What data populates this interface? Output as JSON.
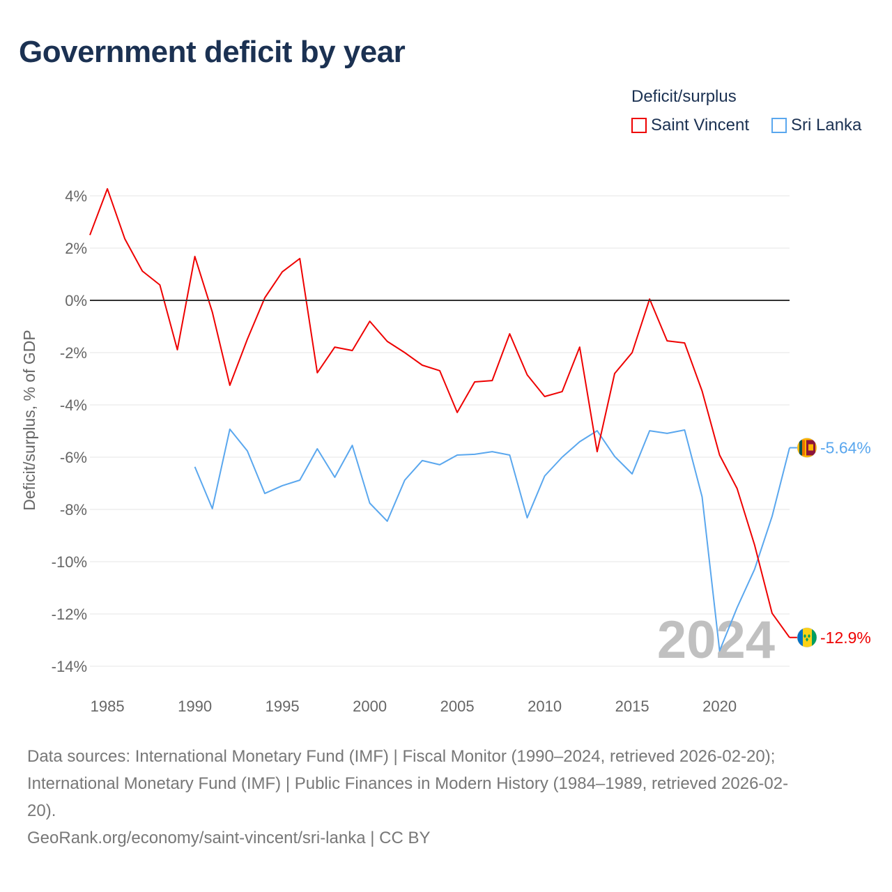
{
  "title": "Government deficit by year",
  "legend_title": "Deficit/surplus",
  "colors": {
    "saint_vincent": "#ee0000",
    "sri_lanka": "#5aa7ee",
    "grid": "#e6e6e6",
    "zero": "#333333",
    "axis_text": "#666666",
    "year_watermark": "#c0c0c0"
  },
  "year_watermark": "2024",
  "source_lines": [
    "Data sources: International Monetary Fund (IMF) | Fiscal Monitor (1990–2024, retrieved 2026-02-20);",
    "International Monetary Fund (IMF) | Public Finances in Modern History (1984–1989, retrieved 2026-02-",
    "20).",
    "GeoRank.org/economy/saint-vincent/sri-lanka | CC BY"
  ],
  "chart_data": {
    "type": "line",
    "title": "Government deficit by year",
    "xlabel": "",
    "ylabel": "Deficit/surplus, % of GDP",
    "xlim": [
      1984,
      2024
    ],
    "ylim": [
      -15,
      4.8
    ],
    "x_ticks": [
      1985,
      1990,
      1995,
      2000,
      2005,
      2010,
      2015,
      2020
    ],
    "x_tick_labels": [
      "1985",
      "1990",
      "1995",
      "2000",
      "2005",
      "2010",
      "2015",
      "2020"
    ],
    "y_ticks": [
      4,
      2,
      0,
      -2,
      -4,
      -6,
      -8,
      -10,
      -12,
      -14
    ],
    "y_tick_labels": [
      "4%",
      "2%",
      "0%",
      "-2%",
      "-4%",
      "-6%",
      "-8%",
      "-10%",
      "-12%",
      "-14%"
    ],
    "grid": true,
    "legend_position": "top-right",
    "series": [
      {
        "name": "Saint Vincent",
        "color": "#ee0000",
        "x": [
          1984,
          1985,
          1986,
          1987,
          1988,
          1989,
          1990,
          1991,
          1992,
          1993,
          1994,
          1995,
          1996,
          1997,
          1998,
          1999,
          2000,
          2001,
          2002,
          2003,
          2004,
          2005,
          2006,
          2007,
          2008,
          2009,
          2010,
          2011,
          2012,
          2013,
          2014,
          2015,
          2016,
          2017,
          2018,
          2019,
          2020,
          2021,
          2022,
          2023,
          2024
        ],
        "values": [
          2.5,
          4.27,
          2.35,
          1.12,
          0.59,
          -1.89,
          1.68,
          -0.45,
          -3.25,
          -1.49,
          0.1,
          1.09,
          1.6,
          -2.77,
          -1.79,
          -1.92,
          -0.8,
          -1.57,
          -2.0,
          -2.48,
          -2.69,
          -4.29,
          -3.12,
          -3.07,
          -1.28,
          -2.85,
          -3.68,
          -3.49,
          -1.79,
          -5.79,
          -2.8,
          -2.0,
          0.05,
          -1.55,
          -1.63,
          -3.47,
          -5.92,
          -7.2,
          -9.36,
          -11.97,
          -12.9
        ],
        "end_label": "-12.9%"
      },
      {
        "name": "Sri Lanka",
        "color": "#5aa7ee",
        "x": [
          1990,
          1991,
          1992,
          1993,
          1994,
          1995,
          1996,
          1997,
          1998,
          1999,
          2000,
          2001,
          2002,
          2003,
          2004,
          2005,
          2006,
          2007,
          2008,
          2009,
          2010,
          2011,
          2012,
          2013,
          2014,
          2015,
          2016,
          2017,
          2018,
          2019,
          2020,
          2021,
          2022,
          2023,
          2024
        ],
        "values": [
          -6.37,
          -7.97,
          -4.93,
          -5.76,
          -7.39,
          -7.09,
          -6.88,
          -5.68,
          -6.77,
          -5.55,
          -7.76,
          -8.45,
          -6.88,
          -6.13,
          -6.29,
          -5.92,
          -5.89,
          -5.79,
          -5.92,
          -8.32,
          -6.72,
          -6.0,
          -5.41,
          -4.99,
          -5.97,
          -6.64,
          -4.99,
          -5.09,
          -4.96,
          -7.52,
          -13.41,
          -11.76,
          -10.29,
          -8.27,
          -5.64
        ],
        "end_label": "-5.64%"
      }
    ]
  }
}
